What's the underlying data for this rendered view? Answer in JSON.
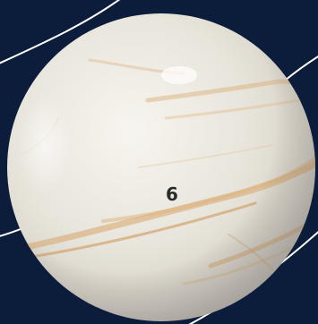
{
  "ball": {
    "number": "6",
    "icon": "venus-planet-ball-icon",
    "number_color": "#2a2a2a"
  },
  "colors": {
    "background": "#0c1c3b",
    "orbit_line": "#ffffff",
    "planet_base": "#ece9e1",
    "planet_band": "#d9a86c"
  }
}
